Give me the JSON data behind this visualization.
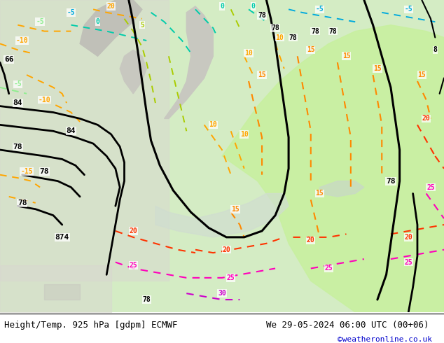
{
  "title_left": "Height/Temp. 925 hPa [gdpm] ECMWF",
  "title_right": "We 29-05-2024 06:00 UTC (00+06)",
  "credit": "©weatheronline.co.uk",
  "bg_color": "#d8ecd8",
  "bg_green": "#c8f0a0",
  "bg_gray": "#c8c8c8",
  "bg_sea": "#ddeedd",
  "height_color": "#000000",
  "temp_colors": {
    "m15": "#ffa500",
    "m10": "#ffa500",
    "m5": "#90ee90",
    "t0": "#00ccaa",
    "t5": "#aacc00",
    "t10": "#ffa500",
    "t15": "#ff8800",
    "t20": "#ff3300",
    "t25": "#ff00bb",
    "t30": "#cc00cc"
  },
  "font_title": 9,
  "font_label": 8,
  "font_credit": 8
}
